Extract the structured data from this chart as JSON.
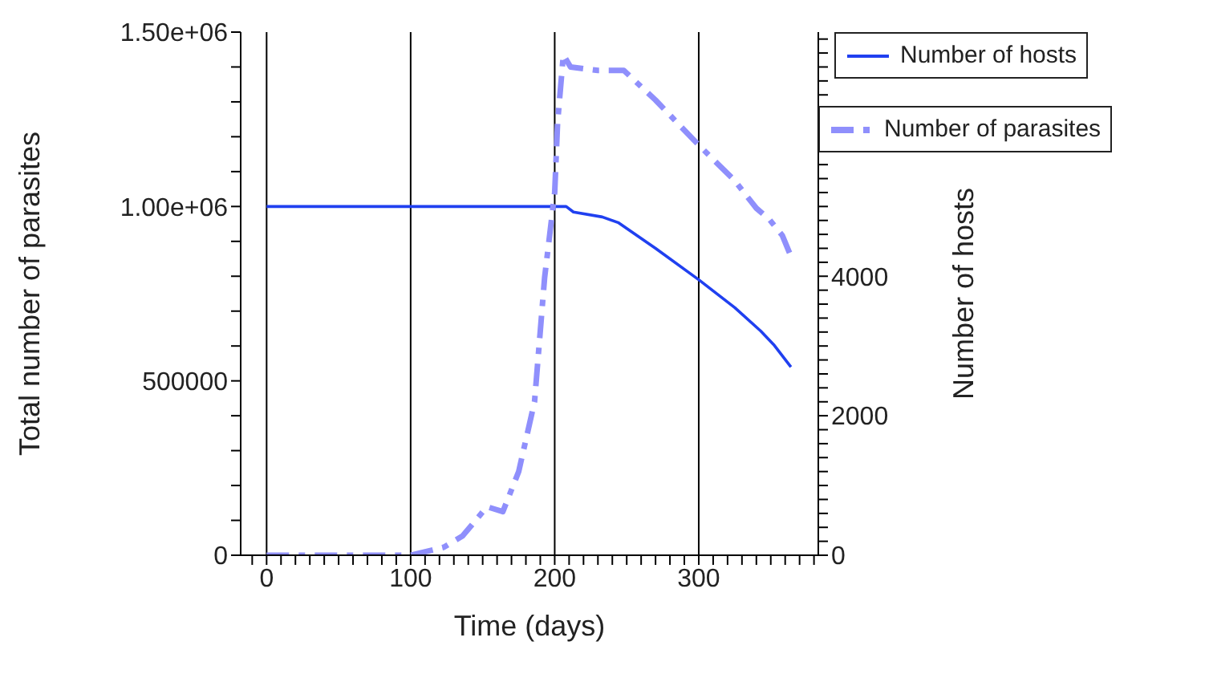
{
  "chart_data": {
    "type": "line",
    "xlabel": "Time (days)",
    "ylabel": "Total number of parasites",
    "y2label": "Number of hosts",
    "xlim": [
      -18,
      383
    ],
    "xticks": [
      0,
      {
        "value": -10,
        "label": null
      },
      {
        "value": 10,
        "label": null
      },
      {
        "value": 20,
        "label": null
      },
      {
        "value": 30,
        "label": null
      },
      {
        "value": 40,
        "label": null
      },
      {
        "value": 50,
        "label": null
      },
      {
        "value": 60,
        "label": null
      },
      {
        "value": 70,
        "label": null
      },
      {
        "value": 80,
        "label": null
      },
      {
        "value": 90,
        "label": null
      },
      100,
      {
        "value": 110,
        "label": null
      },
      {
        "value": 120,
        "label": null
      },
      {
        "value": 130,
        "label": null
      },
      {
        "value": 140,
        "label": null
      },
      {
        "value": 150,
        "label": null
      },
      {
        "value": 160,
        "label": null
      },
      {
        "value": 170,
        "label": null
      },
      {
        "value": 180,
        "label": null
      },
      {
        "value": 190,
        "label": null
      },
      200,
      {
        "value": 210,
        "label": null
      },
      {
        "value": 220,
        "label": null
      },
      {
        "value": 230,
        "label": null
      },
      {
        "value": 240,
        "label": null
      },
      {
        "value": 250,
        "label": null
      },
      {
        "value": 260,
        "label": null
      },
      {
        "value": 270,
        "label": null
      },
      {
        "value": 280,
        "label": null
      },
      {
        "value": 290,
        "label": null
      },
      300,
      {
        "value": 310,
        "label": null
      },
      {
        "value": 320,
        "label": null
      },
      {
        "value": 330,
        "label": null
      },
      {
        "value": 340,
        "label": null
      },
      {
        "value": 350,
        "label": null
      },
      {
        "value": 360,
        "label": null
      },
      {
        "value": 370,
        "label": null
      },
      {
        "value": 380,
        "label": null
      }
    ],
    "ylim": [
      0,
      1500000
    ],
    "yticks": [
      0,
      {
        "value": 500000,
        "label": "500000"
      },
      {
        "value": 1000000,
        "label": "1.00e+06"
      },
      {
        "value": 1500000,
        "label": "1.50e+06"
      },
      {
        "value": 100000,
        "label": null
      },
      {
        "value": 200000,
        "label": null
      },
      {
        "value": 300000,
        "label": null
      },
      {
        "value": 400000,
        "label": null
      },
      {
        "value": 600000,
        "label": null
      },
      {
        "value": 700000,
        "label": null
      },
      {
        "value": 800000,
        "label": null
      },
      {
        "value": 900000,
        "label": null
      },
      {
        "value": 1100000,
        "label": null
      },
      {
        "value": 1200000,
        "label": null
      },
      {
        "value": 1300000,
        "label": null
      },
      {
        "value": 1400000,
        "label": null
      }
    ],
    "y2lim": [
      0,
      7500
    ],
    "y2ticks": [
      0,
      2000,
      4000,
      {
        "value": 200,
        "label": null
      },
      {
        "value": 400,
        "label": null
      },
      {
        "value": 600,
        "label": null
      },
      {
        "value": 800,
        "label": null
      },
      {
        "value": 1000,
        "label": null
      },
      {
        "value": 1200,
        "label": null
      },
      {
        "value": 1400,
        "label": null
      },
      {
        "value": 1600,
        "label": null
      },
      {
        "value": 1800,
        "label": null
      },
      {
        "value": 2200,
        "label": null
      },
      {
        "value": 2400,
        "label": null
      },
      {
        "value": 2600,
        "label": null
      },
      {
        "value": 2800,
        "label": null
      },
      {
        "value": 3000,
        "label": null
      },
      {
        "value": 3200,
        "label": null
      },
      {
        "value": 3400,
        "label": null
      },
      {
        "value": 3600,
        "label": null
      },
      {
        "value": 3800,
        "label": null
      },
      {
        "value": 4200,
        "label": null
      },
      {
        "value": 4400,
        "label": null
      },
      {
        "value": 4600,
        "label": null
      },
      {
        "value": 4800,
        "label": null
      },
      {
        "value": 5000,
        "label": null
      },
      {
        "value": 5200,
        "label": null
      },
      {
        "value": 5400,
        "label": null
      },
      {
        "value": 5600,
        "label": null
      },
      {
        "value": 5800,
        "label": null
      },
      {
        "value": 6000,
        "label": null
      },
      {
        "value": 6200,
        "label": null
      },
      {
        "value": 6400,
        "label": null
      },
      {
        "value": 6600,
        "label": null
      },
      {
        "value": 6800,
        "label": null
      },
      {
        "value": 7000,
        "label": null
      },
      {
        "value": 7200,
        "label": null
      },
      {
        "value": 7400,
        "label": null
      }
    ],
    "grid": "x",
    "legend": "top right",
    "marker": "none",
    "series": [
      {
        "name": "Number of hosts",
        "color": "#2040f0",
        "axis": "y2",
        "line_style": "solid",
        "x": [
          0,
          100,
          200,
          208,
          213,
          233,
          244,
          270,
          300,
          325,
          343,
          352,
          364
        ],
        "values": [
          5000,
          5000,
          5000,
          5000,
          4920,
          4850,
          4770,
          4400,
          3950,
          3550,
          3215,
          3020,
          2700
        ]
      },
      {
        "name": "Number of parasites",
        "color": "#8f8ffc",
        "line_style": "dashed",
        "x": [
          0,
          50,
          100,
          123,
          136,
          153,
          164,
          175,
          186,
          193,
          200,
          202,
          206,
          211,
          230,
          248,
          270,
          299,
          325,
          340,
          349,
          358,
          365
        ],
        "values": [
          0,
          0,
          0,
          23000,
          55000,
          139000,
          125000,
          240000,
          440000,
          796000,
          1040000,
          1240000,
          1435000,
          1400000,
          1390000,
          1390000,
          1305000,
          1180000,
          1074000,
          995000,
          963000,
          917000,
          847000
        ]
      }
    ]
  }
}
